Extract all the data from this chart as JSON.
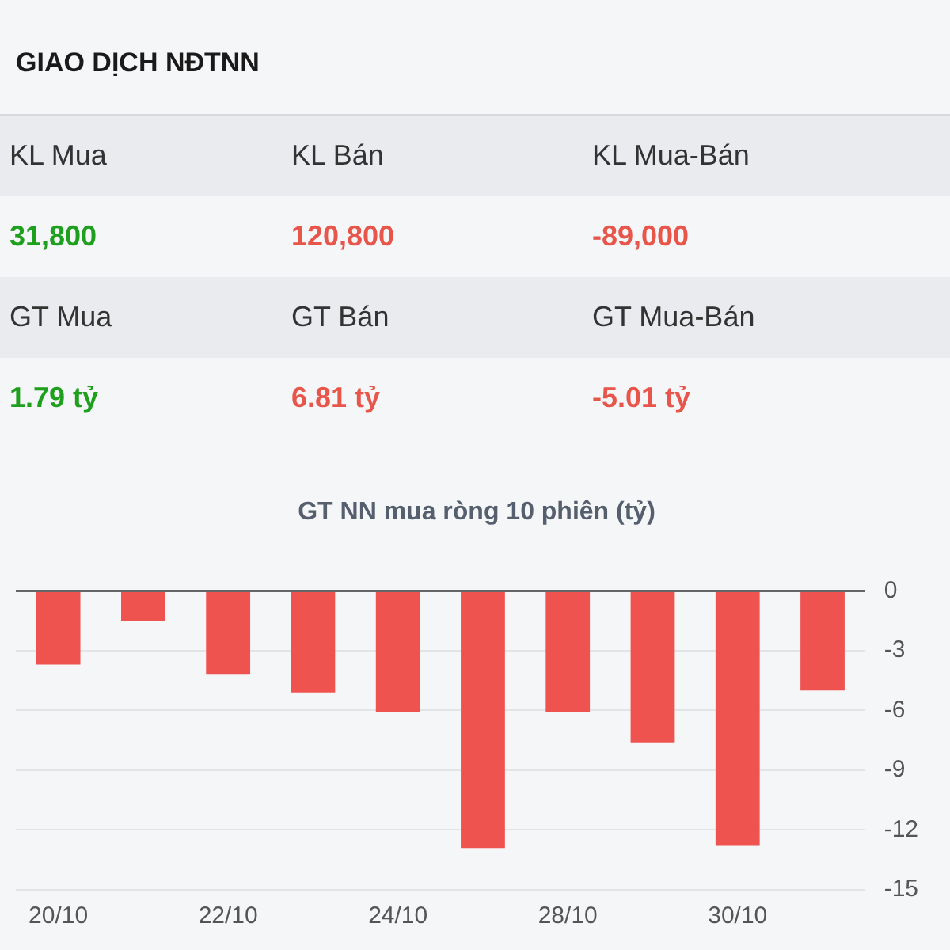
{
  "chart_data": [
    {
      "type": "other",
      "title": "GIAO DỊCH NĐTNN",
      "annotations": [
        "KL Mua",
        "KL Bán",
        "KL Mua-Bán",
        "31,800",
        "120,800",
        "-89,000",
        "GT Mua",
        "GT Bán",
        "GT Mua-Bán",
        "1.79 tỷ",
        "6.81 tỷ",
        "-5.01 tỷ"
      ],
      "colors": [
        "#333333",
        "#333333",
        "#333333",
        "#1ea01e",
        "#e8554a",
        "#e8554a",
        "#333333",
        "#333333",
        "#333333",
        "#1ea01e",
        "#e8554a",
        "#e8554a"
      ]
    },
    {
      "type": "bar",
      "title": "GT NN mua ròng 10 phiên (tỷ)",
      "categories": [
        "20/10",
        null,
        "22/10",
        null,
        "24/10",
        null,
        "28/10",
        null,
        "30/10",
        null
      ],
      "values": [
        -3.7,
        -1.5,
        -4.2,
        -5.1,
        -6.1,
        -12.9,
        -6.1,
        -7.6,
        -12.8,
        -5.0
      ],
      "color": "#ef5350",
      "ylim": [
        -15,
        0
      ],
      "yticks": [
        -15,
        -12,
        -9,
        -6,
        -3,
        0
      ],
      "grid": "y"
    }
  ]
}
